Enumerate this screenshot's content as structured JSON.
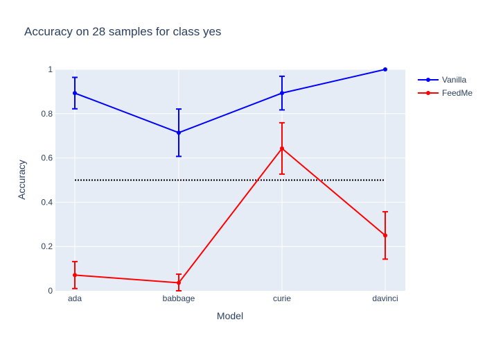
{
  "chart_data": {
    "type": "line",
    "title": "Accuracy on 28 samples for class  yes",
    "xlabel": "Model",
    "ylabel": "Accuracy",
    "categories": [
      "ada",
      "babbage",
      "curie",
      "davinci"
    ],
    "ylim": [
      0,
      1
    ],
    "y_ticks": [
      0,
      0.2,
      0.4,
      0.6,
      0.8,
      1
    ],
    "y_tick_labels": [
      "0",
      "0.2",
      "0.4",
      "0.6",
      "0.8",
      "1"
    ],
    "grid": true,
    "legend_position": "top-right",
    "series": [
      {
        "name": "Vanilla",
        "color": "#0000ff",
        "values": [
          0.893,
          0.714,
          0.893,
          1.0
        ],
        "error": [
          0.071,
          0.107,
          0.076,
          0.0
        ]
      },
      {
        "name": "FeedMe",
        "color": "#ff0000",
        "values": [
          0.071,
          0.036,
          0.643,
          0.25
        ],
        "error": [
          0.061,
          0.039,
          0.116,
          0.107
        ]
      }
    ],
    "reference_line": {
      "value": 0.5,
      "style": "dotted",
      "color": "#000000"
    }
  },
  "colors": {
    "plot_background": "#e5ecf6",
    "grid": "#ffffff",
    "text": "#2a3f5f"
  }
}
